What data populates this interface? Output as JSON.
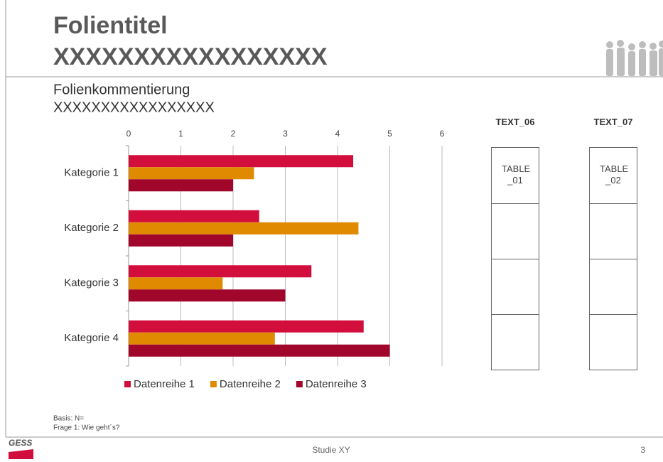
{
  "header": {
    "title": [
      "Folientitel",
      "XXXXXXXXXXXXXXXXX"
    ],
    "comment": [
      "Folienkommentierung",
      "XXXXXXXXXXXXXXXXX"
    ]
  },
  "chart_data": {
    "type": "hbar",
    "categories": [
      "Kategorie 1",
      "Kategorie 2",
      "Kategorie 3",
      "Kategorie 4"
    ],
    "series": [
      {
        "name": "Datenreihe 1",
        "color": "#d20f3c",
        "values": [
          4.3,
          2.5,
          3.5,
          4.5
        ]
      },
      {
        "name": "Datenreihe 2",
        "color": "#df8a00",
        "values": [
          2.4,
          4.4,
          1.8,
          2.8
        ]
      },
      {
        "name": "Datenreihe 3",
        "color": "#a1062b",
        "values": [
          2.0,
          2.0,
          3.0,
          5.0
        ]
      }
    ],
    "xlim": [
      0,
      6
    ],
    "xticks": [
      0,
      1,
      2,
      3,
      4,
      5,
      6
    ],
    "grid": true,
    "legend": "bottom"
  },
  "tables": [
    {
      "heading": "TEXT_06",
      "rows": [
        "TABLE _01",
        "",
        "",
        ""
      ]
    },
    {
      "heading": "TEXT_07",
      "rows": [
        "TABLE _02",
        "",
        "",
        ""
      ]
    }
  ],
  "footer": {
    "notes": [
      "Basis: N=",
      "Frage 1: Wie geht´s?"
    ],
    "logo": "GESS",
    "study": "Studie XY",
    "page": "3"
  }
}
